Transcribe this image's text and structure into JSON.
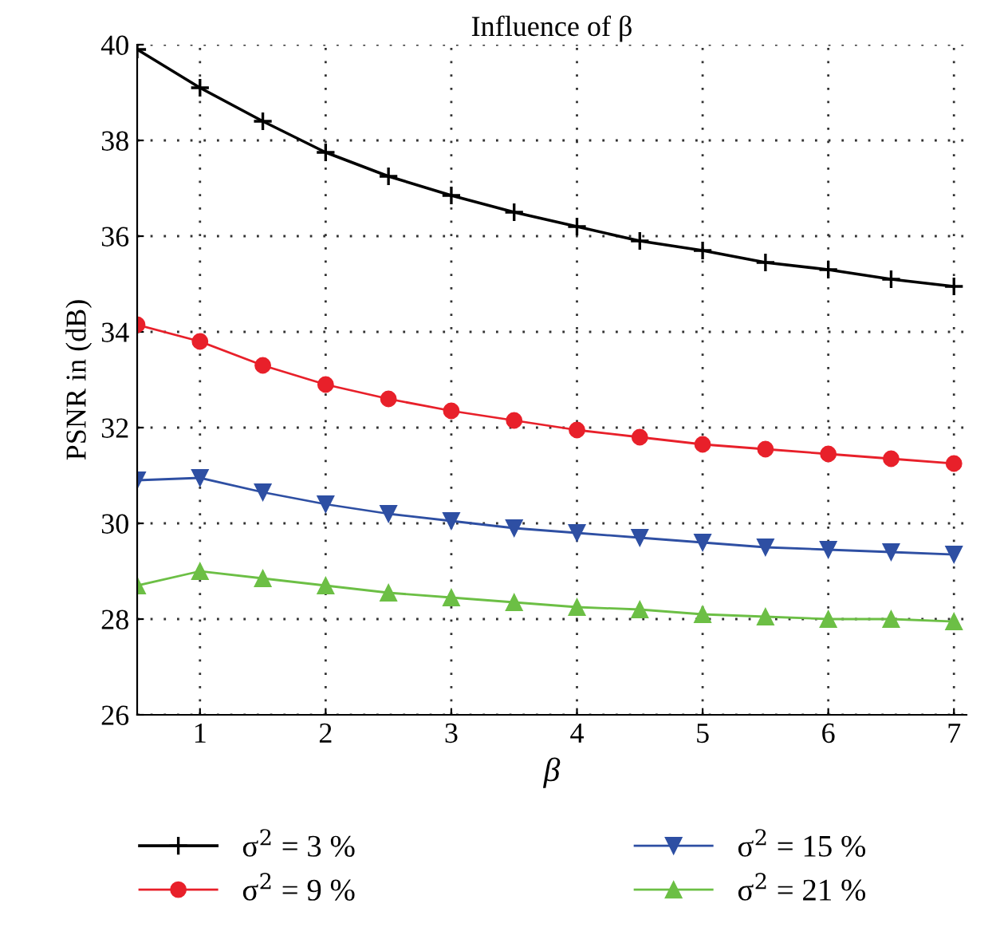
{
  "chart_data": {
    "type": "line",
    "title": "Influence of β",
    "xlabel": "β",
    "ylabel": "PSNR in (dB)",
    "x": [
      0.5,
      1,
      1.5,
      2,
      2.5,
      3,
      3.5,
      4,
      4.5,
      5,
      5.5,
      6,
      6.5,
      7
    ],
    "xlim": [
      0.5,
      7.1
    ],
    "xticks": [
      1,
      2,
      3,
      4,
      5,
      6,
      7
    ],
    "ylim": [
      26,
      40
    ],
    "yticks": [
      26,
      28,
      30,
      32,
      34,
      36,
      38,
      40
    ],
    "grid": true,
    "legend": "bottom",
    "line_style": "solid",
    "series": [
      {
        "name": "σ$^{2}$ = 3 %",
        "color": "#000000",
        "marker": "cross",
        "values": [
          39.9,
          39.1,
          38.4,
          37.75,
          37.25,
          36.85,
          36.5,
          36.2,
          35.9,
          35.7,
          35.45,
          35.3,
          35.1,
          34.95
        ]
      },
      {
        "name": "σ$^{2}$ = 9 %",
        "color": "#e8202a",
        "marker": "circle",
        "values": [
          34.15,
          33.8,
          33.3,
          32.9,
          32.6,
          32.35,
          32.15,
          31.95,
          31.8,
          31.65,
          31.55,
          31.45,
          31.35,
          31.25
        ]
      },
      {
        "name": "σ$^{2}$ = 15 %",
        "color": "#2e4fa3",
        "marker": "triangle_down",
        "values": [
          30.9,
          30.95,
          30.65,
          30.4,
          30.2,
          30.05,
          29.9,
          29.8,
          29.7,
          29.6,
          29.5,
          29.45,
          29.4,
          29.35
        ]
      },
      {
        "name": "σ$^{2}$ = 21 %",
        "color": "#6cbf45",
        "marker": "triangle",
        "values": [
          28.7,
          29.0,
          28.85,
          28.7,
          28.55,
          28.45,
          28.35,
          28.25,
          28.2,
          28.1,
          28.05,
          28.0,
          28.0,
          27.95
        ]
      }
    ]
  }
}
